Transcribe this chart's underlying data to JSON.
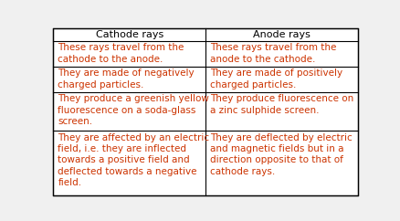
{
  "background_color": "#f0f0f0",
  "table_bg": "#ffffff",
  "border_color": "#000000",
  "text_color": "#cc3300",
  "header_text_color": "#000000",
  "font_size": 7.5,
  "header_font_size": 8.0,
  "col1_header": "Cathode rays",
  "col2_header": "Anode rays",
  "rows": [
    [
      "These rays travel from the\ncathode to the anode.",
      "These rays travel from the\nanode to the cathode."
    ],
    [
      "They are made of negatively\ncharged particles.",
      "They are made of positively\ncharged particles."
    ],
    [
      "They produce a greenish yellow\nfluorescence on a soda-glass\nscreen.",
      "They produce fluorescence on\na zinc sulphide screen."
    ],
    [
      "They are affected by an electric\nfield, i.e. they are inflected\ntowards a positive field and\ndeflected towards a negative\nfield.",
      "They are deflected by electric\nand magnetic fields but in a\ndirection opposite to that of\ncathode rays."
    ]
  ],
  "row_heights_lines": [
    1,
    2,
    2,
    3,
    5
  ]
}
